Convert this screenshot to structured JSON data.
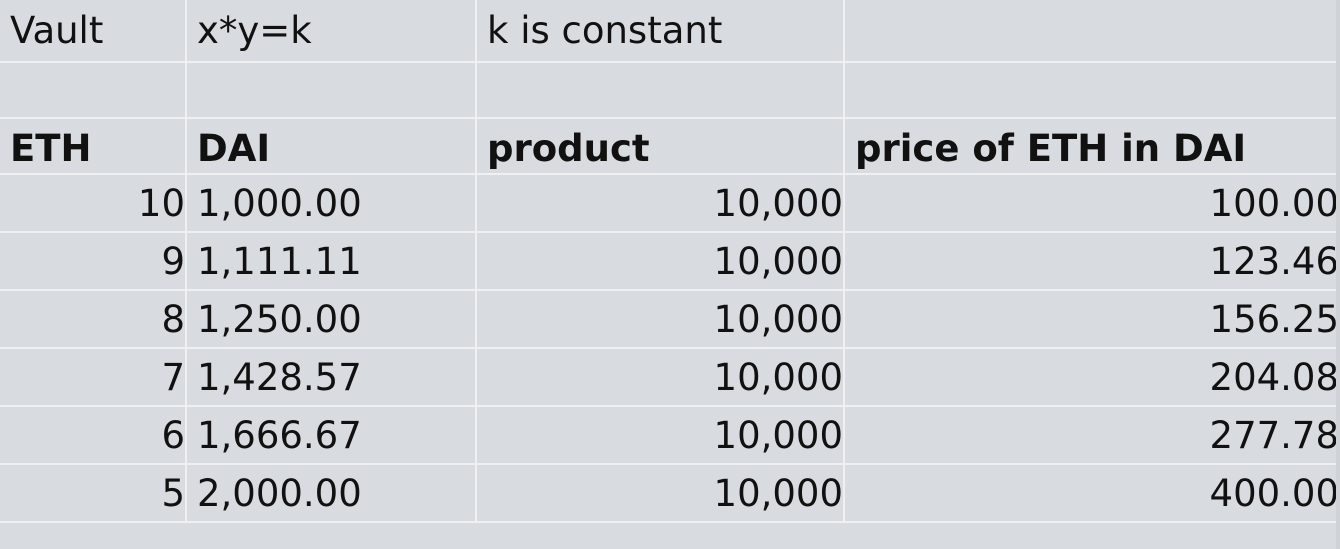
{
  "title_row": {
    "a": "Vault",
    "b": "x*y=k",
    "c": "k is constant",
    "d": ""
  },
  "headers": {
    "eth": "ETH",
    "dai": "DAI",
    "product": "product",
    "price": "price of ETH in DAI"
  },
  "rows": [
    {
      "eth": "10",
      "dai": "1,000.00",
      "product": "10,000",
      "price": "100.00"
    },
    {
      "eth": "9",
      "dai": "1,111.11",
      "product": "10,000",
      "price": "123.46"
    },
    {
      "eth": "8",
      "dai": "1,250.00",
      "product": "10,000",
      "price": "156.25"
    },
    {
      "eth": "7",
      "dai": "1,428.57",
      "product": "10,000",
      "price": "204.08"
    },
    {
      "eth": "6",
      "dai": "1,666.67",
      "product": "10,000",
      "price": "277.78"
    },
    {
      "eth": "5",
      "dai": "2,000.00",
      "product": "10,000",
      "price": "400.00"
    }
  ],
  "colors": {
    "cell_bg": "#d8dbdf",
    "gridline": "#eef0f2",
    "text": "#111111"
  }
}
